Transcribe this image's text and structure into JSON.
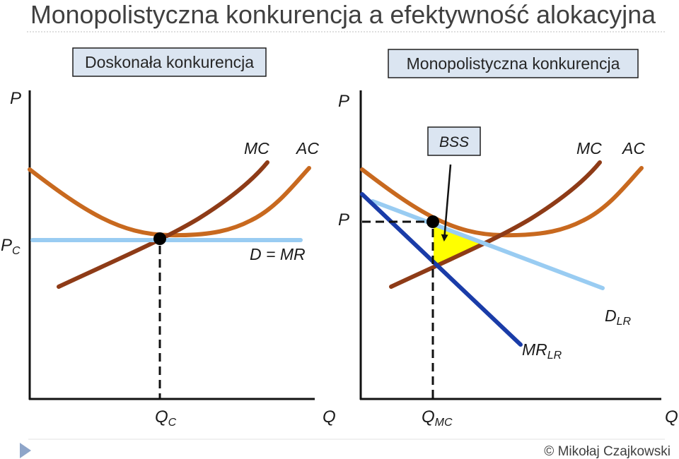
{
  "slide": {
    "title": "Monopolistyczna konkurencja a efektywność alokacyjna",
    "footer": "© Mikołaj Czajkowski",
    "nav_icon": "play-triangle-icon"
  },
  "colors": {
    "mc": "#8e3b17",
    "ac": "#c8691f",
    "demand": "#99ccf2",
    "mr": "#1a3ca8",
    "bss_area": "#ffff00",
    "heading_box": "#dbe5f1",
    "nav_icon": "#8ea5c9"
  },
  "left_panel": {
    "heading": "Doskonała konkurencja",
    "y_axis_label": "P",
    "x_axis_label": "Q",
    "mc_label": "MC",
    "ac_label": "AC",
    "demand_label": "D = MR",
    "price_label": {
      "main": "P",
      "sub": "C"
    },
    "quantity_label": {
      "main": "Q",
      "sub": "C"
    }
  },
  "right_panel": {
    "heading": "Monopolistyczna konkurencja",
    "y_axis_label": "P",
    "x_axis_label": "Q",
    "mc_label": "MC",
    "ac_label": "AC",
    "price_label": "P",
    "bss_label": "BSS",
    "demand_label": {
      "main": "D",
      "sub": "LR"
    },
    "mr_label": {
      "main": "MR",
      "sub": "LR"
    },
    "quantity_label": {
      "main": "Q",
      "sub": "MC"
    }
  }
}
